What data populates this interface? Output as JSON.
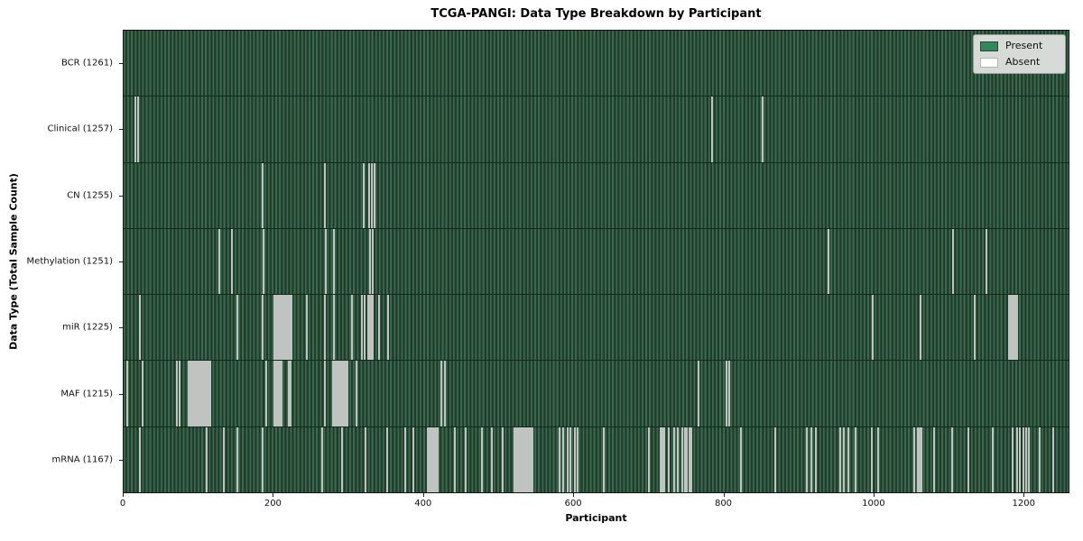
{
  "title": "TCGA-PANGI: Data Type Breakdown by Participant",
  "xlabel": "Participant",
  "ylabel": "Data Type (Total Sample Count)",
  "legend": {
    "present_label": "Present",
    "absent_label": "Absent"
  },
  "colors": {
    "present": "#2e8b57",
    "absent": "#ffffff",
    "present_swatch_border": "#3a3a3a",
    "absent_swatch_border": "#b5b5b5",
    "absent_line": "#c0c4c0"
  },
  "chart_data": {
    "type": "heatmap",
    "x_max": 1261,
    "x_range": [
      0,
      1261
    ],
    "x_ticks": [
      0,
      200,
      400,
      600,
      800,
      1000,
      1200
    ],
    "legend_position": "upper right",
    "grid": false,
    "rows": [
      {
        "data_type": "BCR",
        "label": "BCR (1261)",
        "total": 1261,
        "absent": []
      },
      {
        "data_type": "Clinical",
        "label": "Clinical (1257)",
        "total": 1257,
        "absent": [
          14,
          18,
          784,
          851
        ]
      },
      {
        "data_type": "CN",
        "label": "CN (1255)",
        "total": 1255,
        "absent": [
          184,
          267,
          319,
          326,
          330,
          334
        ]
      },
      {
        "data_type": "Methylation",
        "label": "Methylation (1251)",
        "total": 1251,
        "absent": [
          126,
          143,
          185,
          268,
          279,
          327,
          331,
          940,
          1106,
          1150
        ]
      },
      {
        "data_type": "miR",
        "label": "miR (1225)",
        "total": 1225,
        "absent": [
          20,
          150,
          184,
          200,
          202,
          204,
          206,
          208,
          210,
          212,
          214,
          217,
          219,
          221,
          223,
          243,
          267,
          280,
          304,
          317,
          320,
          325,
          327,
          329,
          331,
          340,
          352,
          999,
          1062,
          1134,
          1180,
          1183,
          1185,
          1187,
          1189,
          1191
        ]
      },
      {
        "data_type": "MAF",
        "label": "MAF (1215)",
        "total": 1215,
        "absent": [
          4,
          24,
          70,
          74,
          86,
          88,
          90,
          92,
          94,
          96,
          98,
          100,
          102,
          104,
          106,
          108,
          110,
          112,
          115,
          189,
          200,
          202,
          204,
          206,
          208,
          210,
          219,
          222,
          267,
          278,
          280,
          282,
          284,
          286,
          288,
          290,
          292,
          294,
          296,
          298,
          309,
          423,
          427,
          766,
          803,
          807
        ]
      },
      {
        "data_type": "mRNA",
        "label": "mRNA (1167)",
        "total": 1167,
        "absent": [
          20,
          110,
          132,
          150,
          184,
          264,
          290,
          321,
          350,
          375,
          385,
          405,
          406,
          407,
          408,
          409,
          410,
          411,
          412,
          413,
          414,
          415,
          416,
          418,
          441,
          455,
          477,
          490,
          505,
          520,
          522,
          523,
          524,
          525,
          526,
          527,
          528,
          529,
          530,
          531,
          532,
          533,
          534,
          536,
          538,
          540,
          542,
          544,
          581,
          585,
          591,
          595,
          601,
          605,
          640,
          700,
          716,
          718,
          720,
          726,
          734,
          738,
          744,
          748,
          750,
          754,
          756,
          822,
          868,
          910,
          916,
          922,
          955,
          960,
          966,
          975,
          997,
          1006,
          1054,
          1059,
          1061,
          1063,
          1080,
          1105,
          1126,
          1159,
          1185,
          1191,
          1195,
          1199,
          1203,
          1207,
          1221,
          1239
        ]
      }
    ]
  }
}
